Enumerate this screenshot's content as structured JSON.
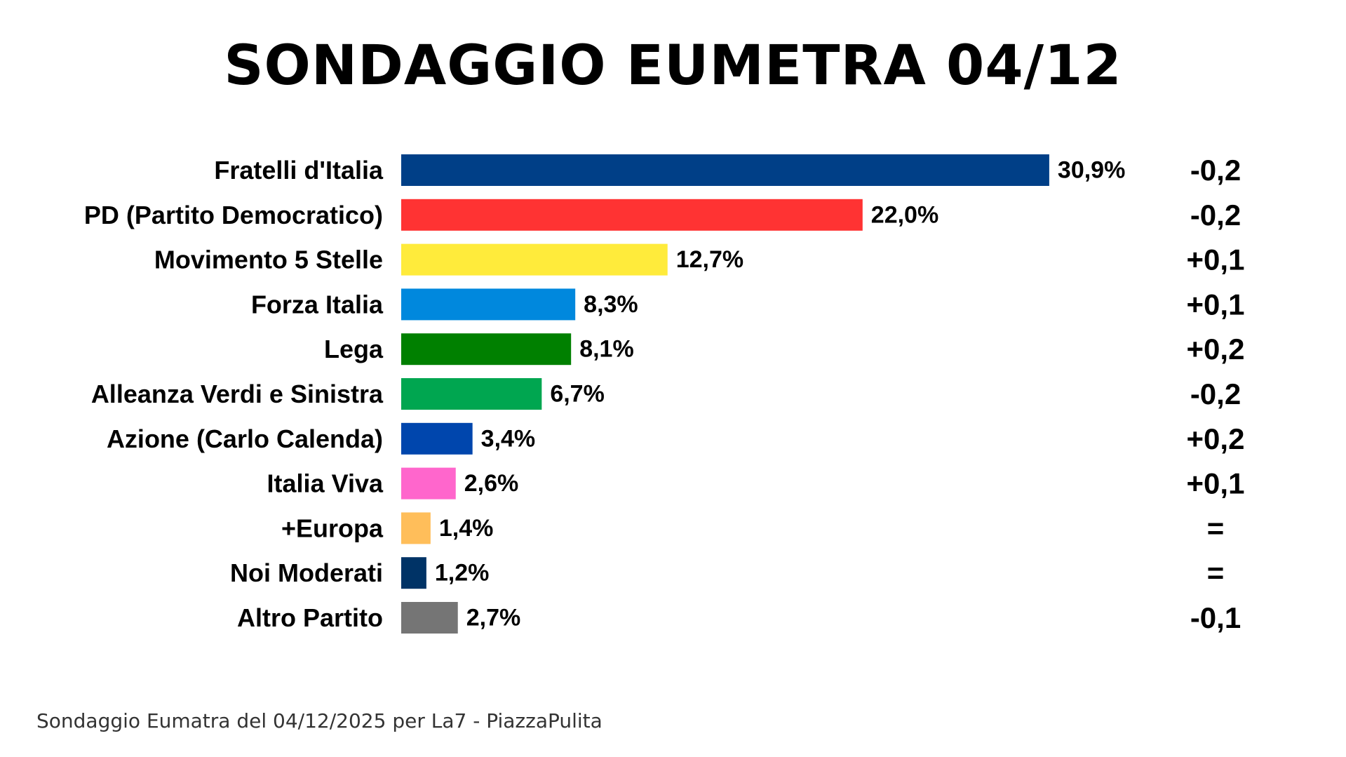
{
  "title": "SONDAGGIO EUMETRA 04/12",
  "footnote": "Sondaggio Eumatra del 04/12/2025 per La7 - PiazzaPulita",
  "chart_data": {
    "type": "bar",
    "orientation": "horizontal",
    "title": "SONDAGGIO EUMETRA 04/12",
    "xlabel": "",
    "ylabel": "",
    "grid": false,
    "categories": [
      "Fratelli d'Italia",
      "PD (Partito Democratico)",
      "Movimento 5 Stelle",
      "Forza Italia",
      "Lega",
      "Alleanza Verdi e Sinistra",
      "Azione (Carlo Calenda)",
      "Italia Viva",
      "+Europa",
      "Noi Moderati",
      "Altro Partito"
    ],
    "values": [
      30.9,
      22.0,
      12.7,
      8.3,
      8.1,
      6.7,
      3.4,
      2.6,
      1.4,
      1.2,
      2.7
    ],
    "value_labels": [
      "30,9%",
      "22,0%",
      "12,7%",
      "8,3%",
      "8,1%",
      "6,7%",
      "3,4%",
      "2,6%",
      "1,4%",
      "1,2%",
      "2,7%"
    ],
    "changes": [
      "-0,2",
      "-0,2",
      "+0,1",
      "+0,1",
      "+0,2",
      "-0,2",
      "+0,2",
      "+0,1",
      "=",
      "=",
      "-0,1"
    ],
    "colors": [
      "#003f87",
      "#ff3333",
      "#ffeb3b",
      "#0088dd",
      "#008000",
      "#00a650",
      "#0046ad",
      "#ff66cc",
      "#ffbe5a",
      "#003366",
      "#757575"
    ]
  }
}
